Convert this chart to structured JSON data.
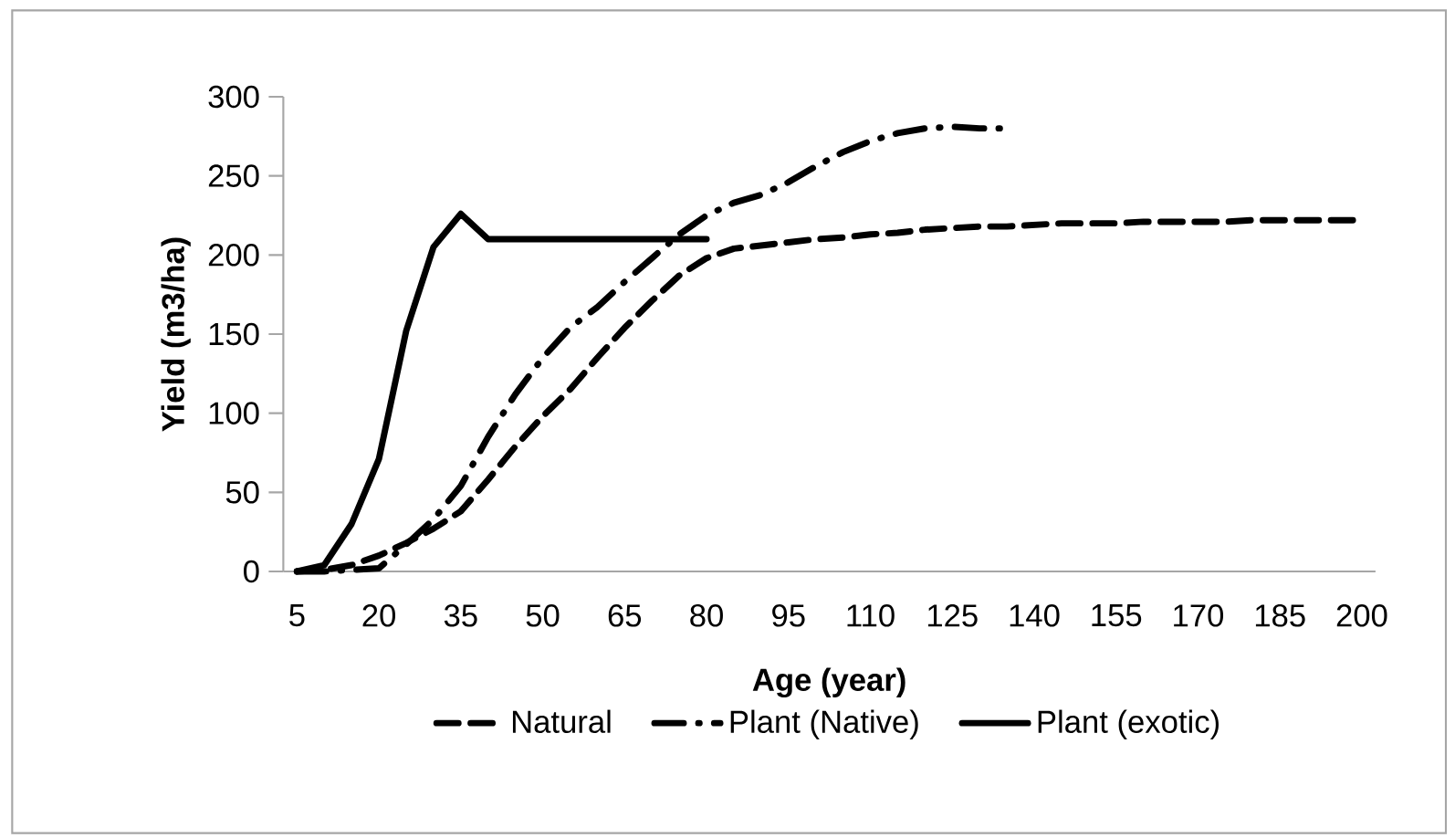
{
  "chart_data": {
    "type": "line",
    "xlabel": "Age (year)",
    "ylabel": "Yield (m3/ha)",
    "categories": [
      "5",
      null,
      null,
      "20",
      null,
      null,
      "35",
      null,
      null,
      "50",
      null,
      null,
      "65",
      null,
      null,
      "80",
      null,
      null,
      "95",
      null,
      null,
      "110",
      null,
      null,
      "125",
      null,
      null,
      "140",
      null,
      null,
      "155",
      null,
      null,
      "170",
      null,
      null,
      "185",
      null,
      null,
      "200"
    ],
    "ylim": [
      0,
      300
    ],
    "yticks": [
      0,
      50,
      100,
      150,
      200,
      250,
      300
    ],
    "grid": false,
    "legend": "bottom",
    "marker": "none",
    "series": [
      {
        "name": "Natural",
        "color": "#000000",
        "line_style": "dashed",
        "values": [
          0,
          1,
          4,
          10,
          18,
          27,
          38,
          58,
          79,
          98,
          115,
          135,
          154,
          171,
          187,
          198,
          204,
          206,
          208,
          210,
          211,
          213,
          214,
          216,
          217,
          218,
          218,
          219,
          220,
          220,
          220,
          221,
          221,
          221,
          221,
          222,
          222,
          222,
          222,
          222
        ]
      },
      {
        "name": "Plant (Native)",
        "color": "#000000",
        "line_style": "dashdot",
        "values": [
          0,
          0,
          1,
          2,
          17,
          33,
          54,
          85,
          112,
          135,
          154,
          167,
          183,
          198,
          213,
          225,
          233,
          238,
          246,
          256,
          265,
          272,
          277,
          280,
          281,
          280,
          280,
          null,
          null,
          null,
          null,
          null,
          null,
          null,
          null,
          null,
          null,
          null,
          null,
          null
        ]
      },
      {
        "name": "Plant (exotic)",
        "color": "#000000",
        "line_style": "solid",
        "values": [
          0,
          4,
          30,
          71,
          152,
          205,
          226,
          210,
          210,
          210,
          210,
          210,
          210,
          210,
          210,
          210,
          null,
          null,
          null,
          null,
          null,
          null,
          null,
          null,
          null,
          null,
          null,
          null,
          null,
          null,
          null,
          null,
          null,
          null,
          null,
          null,
          null,
          null,
          null,
          null
        ]
      }
    ]
  }
}
